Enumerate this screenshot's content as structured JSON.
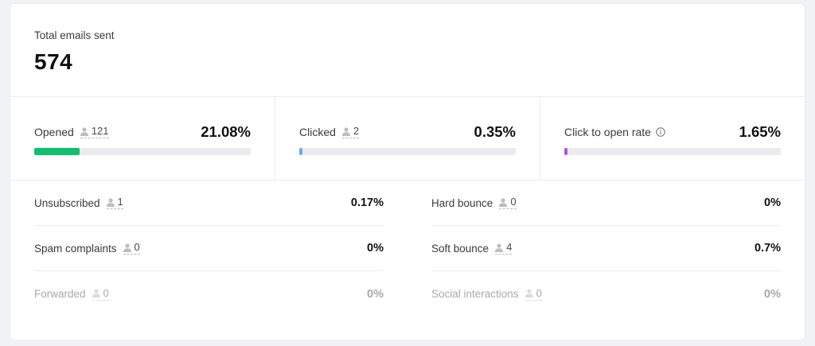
{
  "total": {
    "label": "Total emails sent",
    "value": "574"
  },
  "rates": [
    {
      "label": "Opened",
      "count": "121",
      "pct": "21.08%",
      "fill": 0.2108,
      "color": "#0cc26d",
      "info": false
    },
    {
      "label": "Clicked",
      "count": "2",
      "pct": "0.35%",
      "fill": 0.0035,
      "color": "#6aa6f0",
      "info": false
    },
    {
      "label": "Click to open rate",
      "count": null,
      "pct": "1.65%",
      "fill": 0.0165,
      "color": "#a451f7",
      "info": true
    }
  ],
  "stats_left": [
    {
      "label": "Unsubscribed",
      "count": "1",
      "value": "0.17%",
      "muted": false
    },
    {
      "label": "Spam complaints",
      "count": "0",
      "value": "0%",
      "muted": false
    },
    {
      "label": "Forwarded",
      "count": "0",
      "value": "0%",
      "muted": true
    }
  ],
  "stats_right": [
    {
      "label": "Hard bounce",
      "count": "0",
      "value": "0%",
      "muted": false
    },
    {
      "label": "Soft bounce",
      "count": "4",
      "value": "0.7%",
      "muted": false
    },
    {
      "label": "Social interactions",
      "count": "0",
      "value": "0%",
      "muted": true
    }
  ]
}
